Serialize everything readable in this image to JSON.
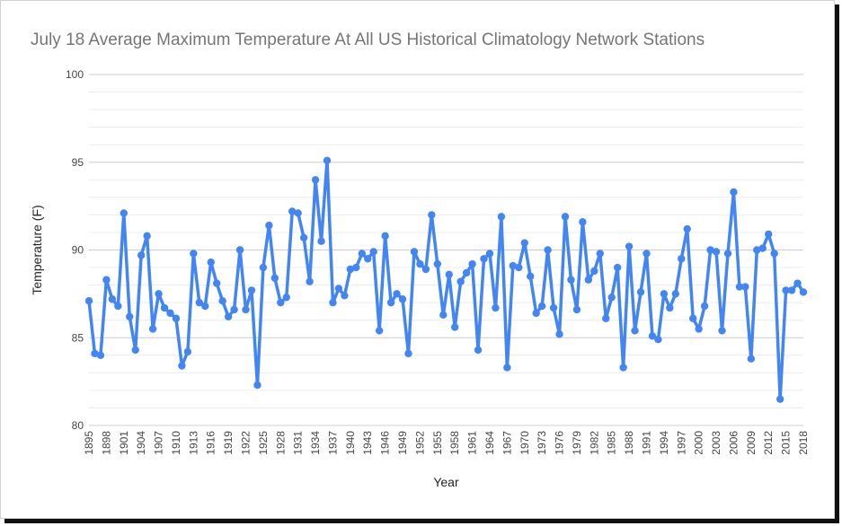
{
  "chart_data": {
    "type": "line",
    "title": "July 18 Average Maximum Temperature At All US Historical Climatology Network Stations",
    "xlabel": "Year",
    "ylabel": "Temperature (F)",
    "ylim": [
      80,
      100
    ],
    "yticks": [
      "100",
      "95",
      "90",
      "85",
      "80"
    ],
    "xticks": [
      "1895",
      "1898",
      "1901",
      "1904",
      "1907",
      "1910",
      "1913",
      "1916",
      "1919",
      "1922",
      "1925",
      "1928",
      "1931",
      "1934",
      "1937",
      "1940",
      "1943",
      "1946",
      "1949",
      "1952",
      "1955",
      "1958",
      "1961",
      "1964",
      "1967",
      "1970",
      "1973",
      "1976",
      "1979",
      "1982",
      "1985",
      "1988",
      "1991",
      "1994",
      "1997",
      "2000",
      "2003",
      "2006",
      "2009",
      "2012",
      "2015",
      "2018"
    ],
    "grid": true,
    "legend": "none",
    "color": "#4285f4",
    "x_start": 1895,
    "values": [
      87.1,
      84.1,
      84.0,
      88.3,
      87.2,
      86.8,
      92.1,
      86.2,
      84.3,
      89.7,
      90.8,
      85.5,
      87.5,
      86.7,
      86.4,
      86.1,
      83.4,
      84.2,
      89.8,
      87.0,
      86.8,
      89.3,
      88.1,
      87.1,
      86.2,
      86.6,
      90.0,
      86.6,
      87.7,
      82.3,
      89.0,
      91.4,
      88.4,
      87.0,
      87.3,
      92.2,
      92.1,
      90.7,
      88.2,
      94.0,
      90.5,
      95.1,
      87.0,
      87.8,
      87.4,
      88.9,
      89.0,
      89.8,
      89.5,
      89.9,
      85.4,
      90.8,
      87.0,
      87.5,
      87.2,
      84.1,
      89.9,
      89.2,
      88.9,
      92.0,
      89.2,
      86.3,
      88.6,
      85.6,
      88.2,
      88.7,
      89.2,
      84.3,
      89.5,
      89.8,
      86.7,
      91.9,
      83.3,
      89.1,
      89.0,
      90.4,
      88.5,
      86.4,
      86.8,
      90.0,
      86.7,
      85.2,
      91.9,
      88.3,
      86.6,
      91.6,
      88.3,
      88.8,
      89.8,
      86.1,
      87.3,
      89.0,
      83.3,
      90.2,
      85.4,
      87.6,
      89.8,
      85.1,
      84.9,
      87.5,
      86.7,
      87.5,
      89.5,
      91.2,
      86.1,
      85.5,
      86.8,
      90.0,
      89.9,
      85.4,
      89.8,
      93.3,
      87.9,
      87.9,
      83.8,
      90.0,
      90.1,
      90.9,
      89.8,
      81.5,
      87.7,
      87.7,
      88.1,
      87.6
    ]
  }
}
